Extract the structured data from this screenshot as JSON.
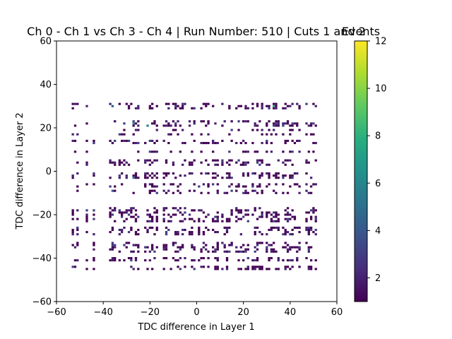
{
  "chart_data": {
    "type": "heatmap",
    "title": "Ch 0 - Ch 1 vs Ch 3 - Ch 4 | Run Number: 510 | Cuts 1 and 2",
    "xlabel": "TDC difference in Layer 1",
    "ylabel": "TDC difference in Layer 2",
    "xlim": [
      -60,
      60
    ],
    "ylim": [
      -60,
      60
    ],
    "xticks": [
      -60,
      -40,
      -20,
      0,
      20,
      40,
      60
    ],
    "yticks": [
      -60,
      -40,
      -20,
      0,
      20,
      40,
      60
    ],
    "colorbar": {
      "label": "Events",
      "range": [
        1,
        12
      ],
      "ticks": [
        2,
        4,
        6,
        8,
        10,
        12
      ],
      "colormap": "viridis"
    },
    "bin_width": 1,
    "grid": false,
    "x_columns": [
      -53,
      -52,
      -51,
      -47,
      -44,
      -37,
      -36,
      -35,
      -33,
      -32,
      -31,
      -30,
      -29,
      -28,
      -27,
      -26,
      -25,
      -22,
      -21,
      -20,
      -19,
      -18,
      -17,
      -14,
      -13,
      -12,
      -11,
      -10,
      -9,
      -8,
      -7,
      -6,
      -5,
      -3,
      -2,
      -1,
      1,
      2,
      3,
      4,
      5,
      7,
      8,
      9,
      11,
      12,
      13,
      14,
      15,
      17,
      18,
      19,
      20,
      21,
      22,
      24,
      25,
      26,
      27,
      28,
      30,
      31,
      32,
      33,
      34,
      35,
      37,
      38,
      39,
      40,
      41,
      42,
      43,
      44,
      47,
      48,
      49,
      50,
      51
    ],
    "y_rows": [
      31,
      30,
      29,
      23,
      22,
      21,
      19,
      17,
      14,
      13,
      9,
      5,
      4,
      3,
      -1,
      -2,
      -3,
      -6,
      -7,
      -9,
      -10,
      -17,
      -18,
      -19,
      -20,
      -21,
      -22,
      -23,
      -26,
      -27,
      -28,
      -29,
      -33,
      -34,
      -35,
      -36,
      -37,
      -40,
      -41,
      -44,
      -45
    ],
    "peak_bins": [
      {
        "x": 33,
        "y": 30,
        "count": 8
      },
      {
        "x": -27,
        "y": 22,
        "count": 6
      },
      {
        "x": -21,
        "y": 21,
        "count": 6
      },
      {
        "x": -36,
        "y": 30,
        "count": 4
      },
      {
        "x": -27,
        "y": -3,
        "count": 5
      },
      {
        "x": -9,
        "y": 30,
        "count": 3
      },
      {
        "x": 41,
        "y": 22,
        "count": 3
      },
      {
        "x": -29,
        "y": -20,
        "count": 3
      },
      {
        "x": 20,
        "y": -21,
        "count": 3
      },
      {
        "x": -36,
        "y": -9,
        "count": 4
      }
    ],
    "max_count": 12,
    "min_count": 1
  }
}
